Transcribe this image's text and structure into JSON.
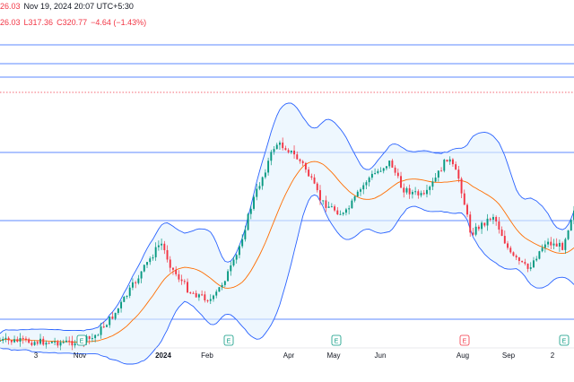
{
  "header": {
    "symbol_timestamp": "26.03",
    "date": "Nov 19, 2024 20:07 UTC+5:30",
    "ohlc_prefix": "",
    "open_partial": "26.03",
    "low": "L317.36",
    "close": "C320.77",
    "change": "−4.64 (−1.43%)"
  },
  "chart_data": {
    "type": "candlestick",
    "xaxis_ticks": [
      "3",
      "Nov",
      "2024",
      "Feb",
      "Apr",
      "May",
      "Jun",
      "Aug",
      "Sep",
      "2"
    ],
    "bold_ticks": [
      "2024"
    ],
    "events": [
      {
        "label": "E",
        "kind": "earnings",
        "month": "Nov"
      },
      {
        "label": "E",
        "kind": "earnings",
        "month": "Feb"
      },
      {
        "label": "E",
        "kind": "earnings",
        "month": "May"
      },
      {
        "label": "E",
        "kind": "earnings-miss",
        "month": "Aug"
      },
      {
        "label": "E",
        "kind": "earnings",
        "month": "Oct"
      }
    ],
    "indicators": [
      "Bollinger Bands (20, 2)"
    ],
    "colors": {
      "up": "#089981",
      "down": "#f23645",
      "basis": "#ff6d00",
      "band": "#2962ff",
      "band_fill": "#e3f2fd",
      "hline": "#2962ff",
      "hline_dashed": "#f23645"
    },
    "grid": false
  }
}
